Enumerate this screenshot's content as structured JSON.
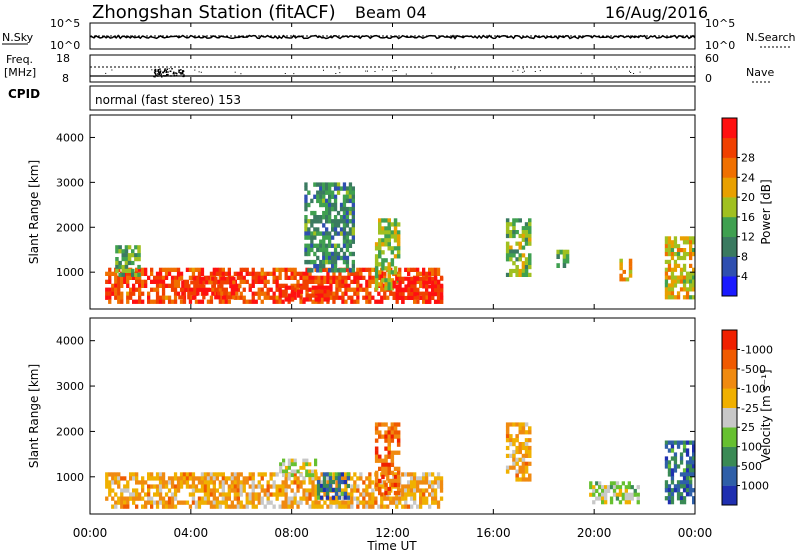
{
  "header": {
    "station": "Zhongshan Station (fitACF)",
    "beam": "Beam 04",
    "date": "16/Aug/2016"
  },
  "noise_panel": {
    "left_label": "N.Sky",
    "left_ticks": [
      "10^5",
      "10^0"
    ],
    "right_ticks": [
      "10^5",
      "10^0"
    ],
    "right_label": "N.Search"
  },
  "freq_panel": {
    "left_label_1": "Freq.",
    "left_label_2": "[MHz]",
    "left_ticks": [
      "18",
      "8"
    ],
    "right_ticks": [
      "60",
      "0"
    ],
    "right_label": "Nave"
  },
  "cpid": {
    "label": "CPID",
    "value": "normal (fast stereo) 153"
  },
  "time_axis": {
    "title": "Time UT",
    "ticks": [
      "00:00",
      "04:00",
      "08:00",
      "12:00",
      "16:00",
      "20:00",
      "00:00"
    ]
  },
  "range_axis": {
    "title": "Slant Range [km]",
    "ticks": [
      "1000",
      "2000",
      "3000",
      "4000"
    ]
  },
  "power_scale": {
    "title": "Power [dB]",
    "labels": [
      "4",
      "8",
      "12",
      "16",
      "20",
      "24",
      "28"
    ],
    "colors": [
      "#1a1aff",
      "#2f4fb0",
      "#3a7a60",
      "#3fa050",
      "#a0c020",
      "#e8a000",
      "#f07000",
      "#f04000",
      "#ff1010"
    ]
  },
  "velocity_scale": {
    "title": "Velocity [m s⁻¹]",
    "labels": [
      "1000",
      "500",
      "100",
      "25",
      "-25",
      "-100",
      "-500",
      "-1000"
    ],
    "colors": [
      "#1f2fb0",
      "#2f5fa8",
      "#3a8a55",
      "#66c030",
      "#c8c8c8",
      "#f0b000",
      "#f08a10",
      "#f05a00",
      "#f02000"
    ]
  },
  "chart_data": {
    "type": "heatmap",
    "title": "Zhongshan Station (fitACF)  Beam 04  16/Aug/2016",
    "xlabel": "Time UT",
    "ylabel": "Slant Range [km]",
    "xlim": [
      "00:00",
      "24:00"
    ],
    "ylim": [
      180,
      4500
    ],
    "panels": [
      {
        "name": "Power [dB]",
        "scale": [
          0,
          32
        ],
        "echo_regions": [
          {
            "t": [
              0.6,
              14.0
            ],
            "range": [
              300,
              1100
            ],
            "value": 26
          },
          {
            "t": [
              1.0,
              2.0
            ],
            "range": [
              900,
              1600
            ],
            "value": 12
          },
          {
            "t": [
              3.5,
              6.0
            ],
            "range": [
              400,
              900
            ],
            "value": 28
          },
          {
            "t": [
              7.5,
              9.5
            ],
            "range": [
              350,
              700
            ],
            "value": 30
          },
          {
            "t": [
              8.5,
              10.5
            ],
            "range": [
              1000,
              3000
            ],
            "value": 10
          },
          {
            "t": [
              11.3,
              12.3
            ],
            "range": [
              600,
              2200
            ],
            "value": 16
          },
          {
            "t": [
              12.0,
              14.0
            ],
            "range": [
              300,
              900
            ],
            "value": 30
          },
          {
            "t": [
              16.5,
              17.5
            ],
            "range": [
              900,
              2200
            ],
            "value": 14
          },
          {
            "t": [
              18.5,
              19.0
            ],
            "range": [
              1100,
              1500
            ],
            "value": 12
          },
          {
            "t": [
              21.0,
              21.5
            ],
            "range": [
              800,
              1300
            ],
            "value": 20
          },
          {
            "t": [
              22.8,
              24.0
            ],
            "range": [
              400,
              1800
            ],
            "value": 18
          }
        ]
      },
      {
        "name": "Velocity [m s⁻¹]",
        "scale": [
          -1000,
          1000
        ],
        "echo_regions": [
          {
            "t": [
              0.6,
              14.0
            ],
            "range": [
              300,
              1100
            ],
            "value": -300
          },
          {
            "t": [
              7.5,
              9.0
            ],
            "range": [
              1000,
              1400
            ],
            "value": 0
          },
          {
            "t": [
              9.0,
              10.3
            ],
            "range": [
              500,
              1100
            ],
            "value": 600
          },
          {
            "t": [
              11.3,
              12.3
            ],
            "range": [
              600,
              2200
            ],
            "value": -600
          },
          {
            "t": [
              16.5,
              17.5
            ],
            "range": [
              900,
              2200
            ],
            "value": -300
          },
          {
            "t": [
              19.8,
              21.8
            ],
            "range": [
              400,
              900
            ],
            "value": 100
          },
          {
            "t": [
              22.8,
              24.0
            ],
            "range": [
              400,
              1800
            ],
            "value": 600
          }
        ]
      }
    ]
  }
}
